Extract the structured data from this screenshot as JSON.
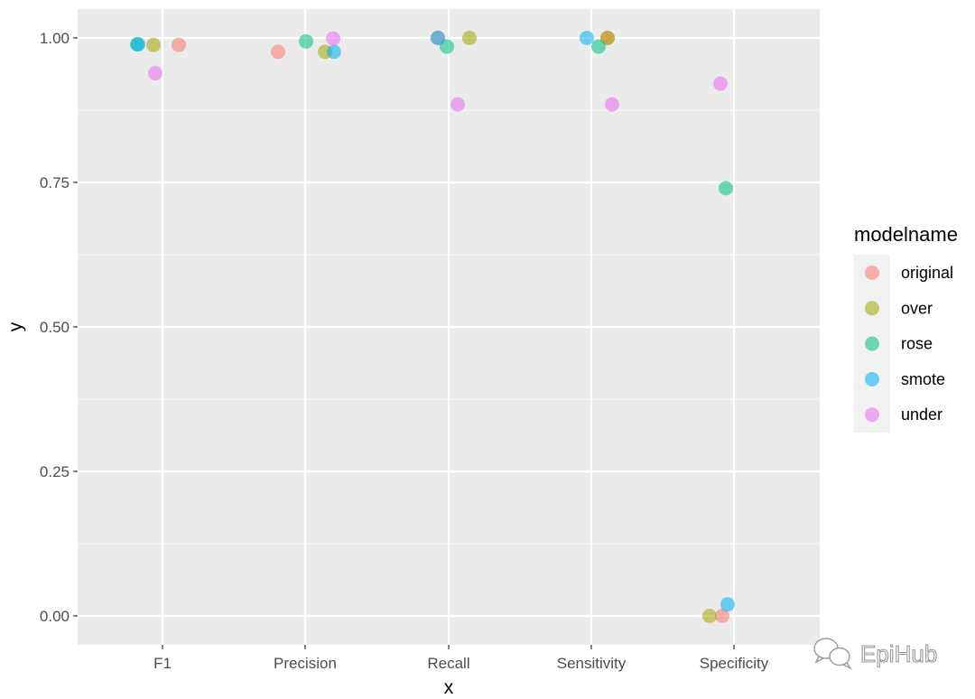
{
  "chart_data": {
    "type": "scatter",
    "title": "",
    "xlabel": "x",
    "ylabel": "y",
    "categories": [
      "F1",
      "Precision",
      "Recall",
      "Sensitivity",
      "Specificity"
    ],
    "ylim": [
      -0.05,
      1.05
    ],
    "yticks": [
      "0.00",
      "0.25",
      "0.50",
      "0.75",
      "1.00"
    ],
    "ytick_values": [
      0,
      0.25,
      0.5,
      0.75,
      1.0
    ],
    "grid": true,
    "legend": {
      "title": "modelname",
      "position": "right"
    },
    "series": [
      {
        "name": "original",
        "color": "#F8766D",
        "points": [
          {
            "x": "F1",
            "y": 0.988
          },
          {
            "x": "Precision",
            "y": 0.976
          },
          {
            "x": "Recall",
            "y": 1.0
          },
          {
            "x": "Sensitivity",
            "y": 1.0
          },
          {
            "x": "Specificity",
            "y": 0.0
          }
        ]
      },
      {
        "name": "over",
        "color": "#A3A500",
        "points": [
          {
            "x": "F1",
            "y": 0.988
          },
          {
            "x": "Precision",
            "y": 0.976
          },
          {
            "x": "Recall",
            "y": 1.0
          },
          {
            "x": "Sensitivity",
            "y": 1.0
          },
          {
            "x": "Specificity",
            "y": 0.0
          }
        ]
      },
      {
        "name": "rose",
        "color": "#00BF7D",
        "points": [
          {
            "x": "F1",
            "y": 0.989
          },
          {
            "x": "Precision",
            "y": 0.994
          },
          {
            "x": "Recall",
            "y": 0.985
          },
          {
            "x": "Sensitivity",
            "y": 0.985
          },
          {
            "x": "Specificity",
            "y": 0.74
          }
        ]
      },
      {
        "name": "smote",
        "color": "#00B0F6",
        "points": [
          {
            "x": "F1",
            "y": 0.989
          },
          {
            "x": "Precision",
            "y": 0.976
          },
          {
            "x": "Recall",
            "y": 1.0
          },
          {
            "x": "Sensitivity",
            "y": 1.0
          },
          {
            "x": "Specificity",
            "y": 0.02
          }
        ]
      },
      {
        "name": "under",
        "color": "#E76BF3",
        "points": [
          {
            "x": "F1",
            "y": 0.939
          },
          {
            "x": "Precision",
            "y": 0.999
          },
          {
            "x": "Recall",
            "y": 0.885
          },
          {
            "x": "Sensitivity",
            "y": 0.885
          },
          {
            "x": "Specificity",
            "y": 0.921
          }
        ]
      }
    ]
  },
  "watermark": {
    "text": "EpiHub",
    "icon": "wechat-icon"
  }
}
